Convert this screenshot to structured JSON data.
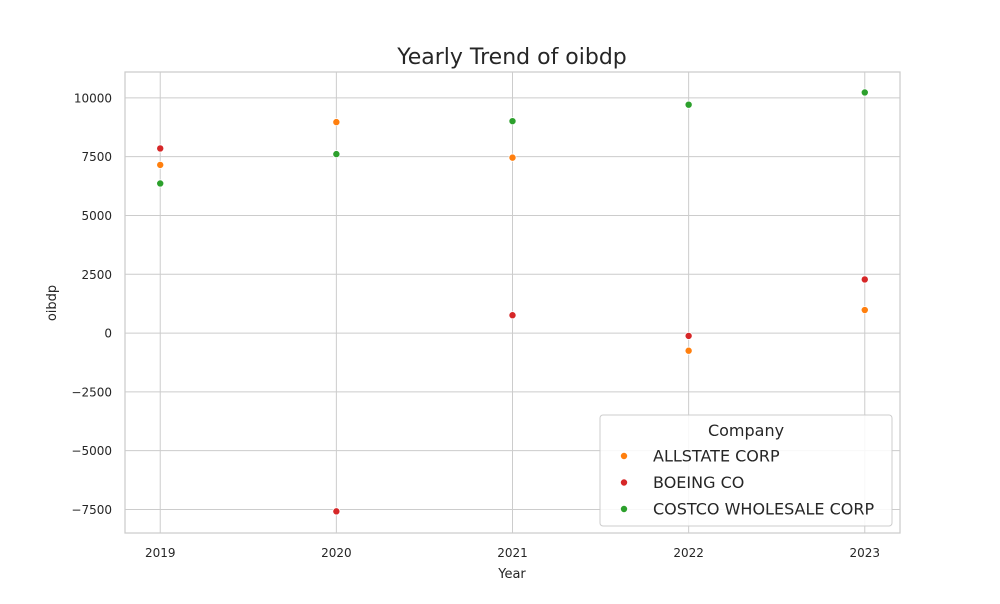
{
  "chart_data": {
    "type": "scatter",
    "title": "Yearly Trend of oibdp",
    "xlabel": "Year",
    "ylabel": "oibdp",
    "x": [
      2019,
      2020,
      2021,
      2022,
      2023
    ],
    "x_tick_labels": [
      "2019",
      "2020",
      "2021",
      "2022",
      "2023"
    ],
    "y_ticks": [
      -7500,
      -5000,
      -2500,
      0,
      2500,
      5000,
      7500,
      10000
    ],
    "y_tick_labels": [
      "−7500",
      "−5000",
      "−2500",
      "0",
      "2500",
      "5000",
      "7500",
      "10000"
    ],
    "xlim": [
      2018.8,
      2023.2
    ],
    "ylim": [
      -8500,
      11100
    ],
    "grid": true,
    "legend": {
      "title": "Company",
      "placement": "lower-right"
    },
    "series": [
      {
        "name": "ALLSTATE CORP",
        "color": "#ff7f0e",
        "values": [
          7150,
          8970,
          7460,
          -750,
          980
        ]
      },
      {
        "name": "BOEING CO",
        "color": "#d62728",
        "values": [
          7850,
          -7580,
          760,
          -120,
          2280
        ]
      },
      {
        "name": "COSTCO WHOLESALE CORP",
        "color": "#2ca02c",
        "values": [
          6360,
          7610,
          9010,
          9710,
          10230
        ]
      }
    ]
  }
}
